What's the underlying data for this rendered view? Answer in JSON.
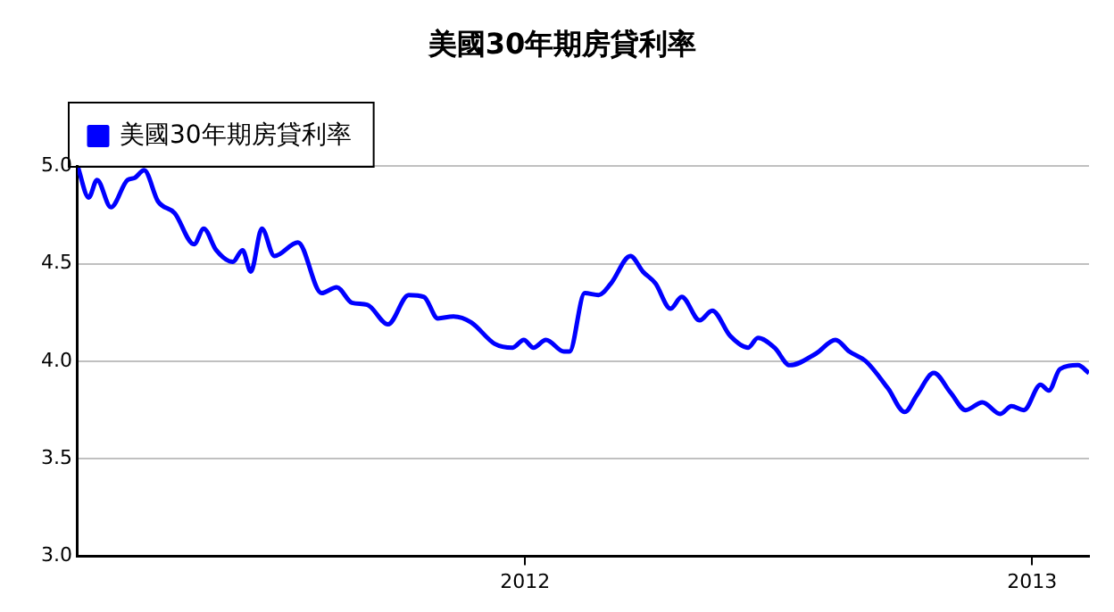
{
  "chart_data": {
    "type": "line",
    "title": "美國30年期房貸利率",
    "legend": "top left",
    "grid": "y",
    "marker": "none",
    "line_style": "solid",
    "xlim": [
      "2011-02-12",
      "2013-02-11"
    ],
    "xticks": [
      "2012",
      "2013"
    ],
    "ylim": [
      3,
      5
    ],
    "yticks": [
      {
        "value": 3,
        "label": "3.0"
      },
      {
        "value": 3.5,
        "label": "3.5"
      },
      {
        "value": 4,
        "label": "4.0"
      },
      {
        "value": 4.5,
        "label": "4.5"
      },
      {
        "value": 5,
        "label": "5.0"
      }
    ],
    "x": [
      "2011-02-12",
      "2011-02-20",
      "2011-02-26",
      "2011-03-08",
      "2011-03-20",
      "2011-03-25",
      "2011-04-01",
      "2011-04-11",
      "2011-04-23",
      "2011-05-07",
      "2011-05-14",
      "2011-05-23",
      "2011-06-04",
      "2011-06-11",
      "2011-06-17",
      "2011-06-25",
      "2011-07-04",
      "2011-07-21",
      "2011-08-07",
      "2011-08-18",
      "2011-08-29",
      "2011-09-09",
      "2011-09-24",
      "2011-10-09",
      "2011-10-20",
      "2011-10-30",
      "2011-11-10",
      "2011-11-23",
      "2011-12-10",
      "2011-12-23",
      "2011-12-31",
      "2012-01-07",
      "2012-01-16",
      "2012-01-29",
      "2012-02-02",
      "2012-02-13",
      "2012-02-23",
      "2012-03-03",
      "2012-03-17",
      "2012-03-26",
      "2012-04-04",
      "2012-04-15",
      "2012-04-23",
      "2012-05-06",
      "2012-05-15",
      "2012-05-28",
      "2012-06-10",
      "2012-06-17",
      "2012-06-29",
      "2012-07-10",
      "2012-07-29",
      "2012-08-12",
      "2012-08-22",
      "2012-09-03",
      "2012-09-19",
      "2012-10-01",
      "2012-10-10",
      "2012-10-22",
      "2012-11-03",
      "2012-11-14",
      "2012-11-26",
      "2012-12-09",
      "2012-12-17",
      "2012-12-26",
      "2013-01-07",
      "2013-01-13",
      "2013-01-21",
      "2013-02-03",
      "2013-02-11"
    ],
    "series": [
      {
        "name": "美國30年期房貸利率",
        "color": "#0000ff",
        "values": [
          5.0,
          4.84,
          4.93,
          4.79,
          4.93,
          4.94,
          4.98,
          4.82,
          4.76,
          4.6,
          4.68,
          4.57,
          4.51,
          4.57,
          4.46,
          4.68,
          4.54,
          4.61,
          4.35,
          4.38,
          4.3,
          4.29,
          4.19,
          4.34,
          4.33,
          4.22,
          4.23,
          4.2,
          4.09,
          4.07,
          4.11,
          4.07,
          4.11,
          4.05,
          4.05,
          4.35,
          4.34,
          4.4,
          4.54,
          4.46,
          4.4,
          4.27,
          4.33,
          4.21,
          4.26,
          4.13,
          4.07,
          4.12,
          4.07,
          3.98,
          4.04,
          4.11,
          4.05,
          4.0,
          3.86,
          3.74,
          3.83,
          3.94,
          3.84,
          3.75,
          3.79,
          3.73,
          3.77,
          3.75,
          3.88,
          3.85,
          3.96,
          3.98,
          3.94
        ]
      }
    ]
  }
}
